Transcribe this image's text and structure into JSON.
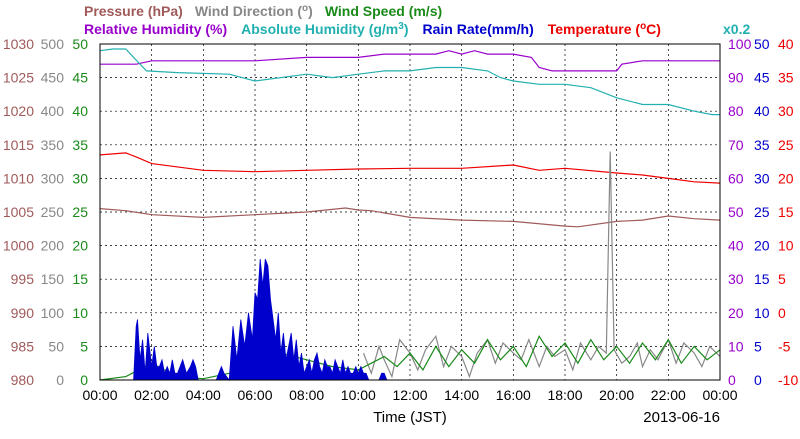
{
  "chart_data": {
    "type": "line",
    "legend": {
      "row1": [
        {
          "label": "Pressure (hPa)",
          "color": "#a05a5a"
        },
        {
          "label": "Wind Direction (",
          "color": "#888888",
          "sup": "o",
          "suffix": ")"
        },
        {
          "label": "Wind Speed (m/s)",
          "color": "#1a8a1a"
        }
      ],
      "row2": [
        {
          "label": "Relative Humidity (%)",
          "color": "#9900cc"
        },
        {
          "label": "Absolute Humidity (g/m",
          "color": "#22b0b0",
          "sup": "3",
          "suffix": ")"
        },
        {
          "label": "Rain Rate(mm/h)",
          "color": "#0000cc"
        },
        {
          "label": "Temperature (",
          "color": "#ee0000",
          "sup": "o",
          "suffix": "C)"
        }
      ],
      "abs_scale_note": "x0.2"
    },
    "xlabel": "Time (JST)",
    "date_label": "2013-06-16",
    "x_range_hours": [
      0,
      24
    ],
    "x_ticks": [
      "00:00",
      "02:00",
      "04:00",
      "06:00",
      "08:00",
      "10:00",
      "12:00",
      "14:00",
      "16:00",
      "18:00",
      "20:00",
      "22:00",
      "00:00"
    ],
    "grid": true,
    "axes": {
      "pressure": {
        "label": "Pressure (hPa)",
        "range": [
          980,
          1030
        ],
        "ticks": [
          "1030",
          "1025",
          "1020",
          "1015",
          "1010",
          "1005",
          "1000",
          "995",
          "990",
          "985",
          "980"
        ],
        "color": "#a05a5a"
      },
      "wind_direction": {
        "range": [
          0,
          500
        ],
        "ticks": [
          "500",
          "450",
          "400",
          "350",
          "300",
          "250",
          "200",
          "150",
          "100",
          "50",
          "0"
        ],
        "color": "#888888"
      },
      "wind_speed": {
        "range": [
          0,
          50
        ],
        "ticks": [
          "50",
          "45",
          "40",
          "35",
          "30",
          "25",
          "20",
          "15",
          "10",
          "5",
          "0"
        ],
        "color": "#1a8a1a"
      },
      "relative_humidity": {
        "range": [
          0,
          100
        ],
        "ticks": [
          "100",
          "90",
          "80",
          "70",
          "60",
          "50",
          "40",
          "30",
          "20",
          "10",
          "0"
        ],
        "color": "#9900cc"
      },
      "rain_rate": {
        "range": [
          0,
          50
        ],
        "ticks": [
          "50",
          "45",
          "40",
          "35",
          "30",
          "25",
          "20",
          "15",
          "10",
          "5",
          "0"
        ],
        "color": "#0000cc"
      },
      "temperature": {
        "range": [
          -10,
          40
        ],
        "ticks": [
          "40",
          "35",
          "30",
          "25",
          "20",
          "15",
          "10",
          "5",
          "0",
          "-5",
          "-10"
        ],
        "color": "#ee0000"
      }
    },
    "series": [
      {
        "name": "Relative Humidity (%)",
        "color": "#9900cc",
        "axis": "relative_humidity",
        "x": [
          0,
          0.3,
          0.6,
          1.0,
          1.4,
          2.0,
          4.0,
          6.0,
          8.0,
          9.0,
          10.0,
          11.0,
          12.0,
          13.0,
          13.5,
          14.0,
          14.5,
          15.0,
          16.0,
          16.7,
          17.0,
          17.5,
          18.0,
          19.0,
          20.0,
          20.2,
          21.0,
          22.0,
          23.0,
          24.0
        ],
        "y": [
          94,
          94,
          94,
          94,
          94,
          95,
          95,
          95,
          96,
          96,
          96,
          97,
          97,
          97,
          98,
          97,
          98,
          97,
          97,
          96,
          93,
          92,
          92,
          92,
          92,
          94,
          95,
          95,
          95,
          95
        ]
      },
      {
        "name": "Absolute Humidity (g/m3)",
        "color": "#22b0b0",
        "axis": "relative_humidity",
        "x": [
          0,
          0.5,
          1.0,
          1.3,
          1.8,
          3.0,
          5.0,
          6.0,
          8.0,
          9.0,
          10.0,
          11.0,
          12.0,
          13.0,
          14.0,
          15.0,
          15.5,
          16.0,
          17.0,
          18.0,
          19.0,
          20.0,
          21.0,
          22.0,
          23.0,
          23.7,
          24.0
        ],
        "y": [
          98,
          98.5,
          98.5,
          96,
          92,
          91.5,
          91,
          89,
          91,
          90,
          91,
          92,
          92,
          93,
          93,
          92,
          90,
          89,
          88,
          88,
          87,
          84,
          82,
          82,
          80,
          79,
          79
        ]
      },
      {
        "name": "Temperature (C)",
        "color": "#ee0000",
        "axis": "temperature",
        "x": [
          0,
          1.0,
          1.4,
          2.0,
          4.0,
          6.0,
          8.0,
          10.0,
          12.0,
          14.0,
          16.0,
          17.0,
          18.0,
          20.0,
          21.0,
          22.0,
          23.0,
          24.0
        ],
        "y": [
          23.5,
          23.8,
          23.2,
          22.2,
          21.2,
          21.0,
          21.2,
          21.4,
          21.5,
          21.5,
          22.0,
          21.2,
          21.5,
          20.8,
          20.5,
          20.0,
          19.5,
          19.3
        ]
      },
      {
        "name": "Pressure (hPa)",
        "color": "#a05a5a",
        "axis": "pressure",
        "x": [
          0,
          1.0,
          2.0,
          4.0,
          6.0,
          8.0,
          9.5,
          10.0,
          10.5,
          12.0,
          14.0,
          16.0,
          18.0,
          18.5,
          20.0,
          21.0,
          22.0,
          23.0,
          24.0
        ],
        "y": [
          1005.5,
          1005.2,
          1004.6,
          1004.2,
          1004.6,
          1005.0,
          1005.6,
          1005.3,
          1005.2,
          1004.2,
          1003.8,
          1003.6,
          1002.9,
          1002.8,
          1003.6,
          1003.8,
          1004.4,
          1004.0,
          1003.8
        ]
      },
      {
        "name": "Wind Direction",
        "color": "#888888",
        "axis": "wind_direction",
        "x": [
          10.2,
          10.5,
          10.8,
          11.0,
          11.3,
          11.6,
          12.0,
          12.3,
          12.6,
          13.0,
          13.3,
          13.6,
          14.0,
          14.3,
          14.6,
          15.0,
          15.3,
          15.6,
          16.0,
          16.3,
          16.6,
          17.0,
          17.3,
          17.6,
          18.0,
          18.3,
          18.6,
          19.0,
          19.3,
          19.6,
          19.75,
          19.9,
          20.2,
          20.5,
          20.8,
          21.0,
          21.3,
          21.6,
          22.0,
          22.3,
          22.6,
          23.0,
          23.3,
          23.6,
          24.0
        ],
        "y": [
          40,
          10,
          50,
          30,
          5,
          60,
          40,
          15,
          45,
          65,
          20,
          50,
          35,
          5,
          40,
          60,
          25,
          55,
          40,
          30,
          60,
          20,
          50,
          35,
          45,
          15,
          55,
          30,
          50,
          40,
          340,
          45,
          25,
          35,
          55,
          20,
          45,
          30,
          60,
          25,
          55,
          40,
          20,
          50,
          35
        ]
      },
      {
        "name": "Wind Speed (m/s)",
        "color": "#1a8a1a",
        "axis": "wind_speed",
        "x": [
          0,
          1.0,
          2.0,
          3.0,
          4.0,
          5.0,
          6.0,
          7.0,
          8.0,
          9.0,
          10.0,
          10.5,
          11.0,
          11.5,
          12.0,
          12.5,
          13.0,
          13.5,
          14.0,
          14.5,
          15.0,
          15.5,
          16.0,
          16.5,
          17.0,
          17.5,
          18.0,
          18.5,
          19.0,
          19.5,
          20.0,
          20.5,
          21.0,
          21.5,
          22.0,
          22.5,
          23.0,
          23.5,
          24.0
        ],
        "y": [
          0,
          0.5,
          2.5,
          0.5,
          0.2,
          1.0,
          3.0,
          4.0,
          3.0,
          2.0,
          1.5,
          2.5,
          3.5,
          2.0,
          4.0,
          1.5,
          5.0,
          2.0,
          4.5,
          2.5,
          6.0,
          3.0,
          5.0,
          2.0,
          6.5,
          3.5,
          5.5,
          2.5,
          6.0,
          3.0,
          5.0,
          2.5,
          5.5,
          3.0,
          6.0,
          2.5,
          5.0,
          3.0,
          4.5
        ]
      },
      {
        "name": "Rain Rate(mm/h)",
        "color": "#0000cc",
        "axis": "rain_rate",
        "style": "filled",
        "x": [
          1.3,
          1.4,
          1.45,
          1.55,
          1.65,
          1.75,
          1.85,
          2.0,
          2.1,
          2.2,
          2.3,
          2.4,
          2.5,
          2.6,
          2.7,
          2.8,
          2.9,
          3.0,
          3.2,
          3.35,
          3.5,
          3.6,
          3.7,
          3.8,
          4.5,
          4.6,
          4.7,
          4.8,
          5.0,
          5.15,
          5.3,
          5.45,
          5.6,
          5.75,
          5.9,
          6.0,
          6.1,
          6.2,
          6.3,
          6.4,
          6.5,
          6.6,
          6.7,
          6.8,
          6.9,
          7.0,
          7.1,
          7.2,
          7.3,
          7.4,
          7.5,
          7.6,
          7.7,
          7.8,
          7.9,
          8.0,
          8.1,
          8.2,
          8.3,
          8.4,
          8.5,
          8.6,
          8.7,
          8.8,
          8.9,
          9.0,
          9.1,
          9.2,
          9.3,
          9.4,
          9.5,
          9.6,
          9.7,
          9.8,
          9.9,
          10.0,
          10.1,
          10.2,
          10.3,
          10.4,
          10.5
        ],
        "y": [
          0,
          8,
          9,
          3,
          6,
          1,
          7,
          2,
          5,
          2,
          2,
          3,
          1,
          2,
          1,
          3,
          1,
          1,
          3,
          1,
          2,
          3,
          2,
          0,
          0,
          1,
          2,
          1,
          0,
          8,
          3,
          9,
          5,
          10,
          6,
          13,
          12,
          18,
          14,
          18,
          17,
          12,
          9,
          6,
          10,
          4,
          7,
          3,
          5,
          7,
          3,
          6,
          2,
          4,
          1,
          2,
          3,
          1,
          3,
          4,
          2,
          1,
          3,
          2,
          2,
          1,
          3,
          2,
          1,
          3,
          1,
          2,
          1,
          1,
          2,
          1,
          2,
          1,
          1,
          0,
          0
        ]
      },
      {
        "name": "Rain Rate(mm/h)",
        "color": "#0000cc",
        "axis": "rain_rate",
        "style": "filled",
        "x": [
          10.8,
          10.9,
          11.0,
          11.1
        ],
        "y": [
          0,
          1,
          1,
          0
        ]
      }
    ]
  }
}
